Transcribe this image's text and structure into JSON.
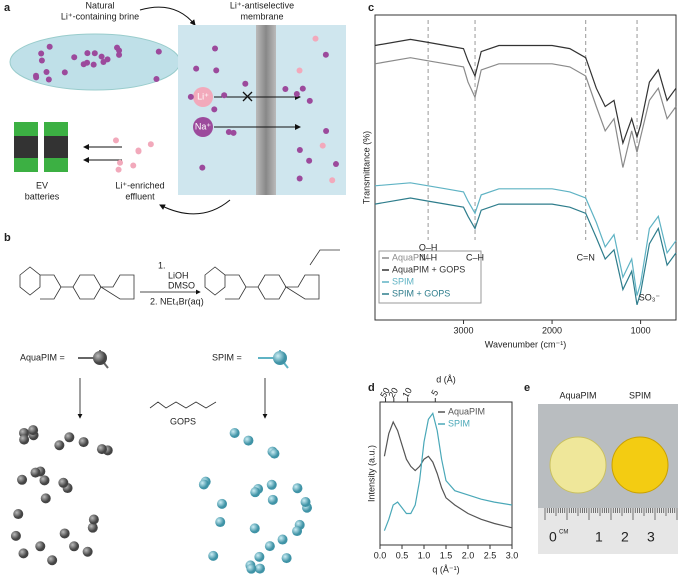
{
  "panel_labels": [
    "a",
    "b",
    "c",
    "d",
    "e"
  ],
  "panel_a": {
    "brine_label": [
      "Natural",
      "Li⁺-containing brine"
    ],
    "membrane_label": [
      "Li⁺-antiselective",
      "membrane"
    ],
    "ion_li": "Li⁺",
    "ion_na": "Na⁺",
    "batteries": [
      "EV",
      "batteries"
    ],
    "effluent": [
      "Li⁺-enriched",
      "effluent"
    ]
  },
  "panel_b": {
    "reagents": [
      "1.",
      "LiOH",
      "DMSO",
      "2. NEt₄Br(aq)"
    ],
    "aquapim": "AquaPIM =",
    "spim": "SPIM =",
    "gops": "GOPS"
  },
  "chart_data": [
    {
      "type": "line",
      "xlabel": "Wavenumber (cm⁻¹)",
      "ylabel": "Transmittance (%)",
      "xlim": [
        4000,
        600
      ],
      "xticks": [
        3000,
        2000,
        1000
      ],
      "ylim": [
        0,
        100
      ],
      "dashed_lines": [
        3400,
        2870,
        1620,
        1040
      ],
      "annotations": [
        "O–H",
        "N–H",
        "C–H",
        "C=N",
        "SO₃⁻"
      ],
      "x": [
        4000,
        3600,
        3400,
        3200,
        3000,
        2950,
        2870,
        2800,
        2600,
        2200,
        2000,
        1800,
        1620,
        1500,
        1400,
        1300,
        1200,
        1100,
        1040,
        1000,
        900,
        800,
        700,
        600
      ],
      "series": [
        {
          "name": "AquaPIM",
          "color": "#8a8a8a",
          "values": [
            84,
            86,
            85,
            84,
            83,
            78,
            73,
            82,
            84,
            84,
            84,
            83,
            80,
            70,
            62,
            66,
            50,
            62,
            55,
            60,
            72,
            76,
            66,
            70
          ]
        },
        {
          "name": "AquaPIM + GOPS",
          "color": "#333333",
          "values": [
            90,
            92,
            91,
            90,
            89,
            85,
            80,
            88,
            90,
            90,
            90,
            89,
            86,
            76,
            70,
            72,
            58,
            66,
            60,
            64,
            78,
            82,
            72,
            76
          ]
        },
        {
          "name": "SPIM",
          "color": "#5fb3c4",
          "values": [
            44,
            45,
            44,
            43,
            42,
            39,
            35,
            41,
            43,
            43,
            43,
            42,
            40,
            32,
            24,
            28,
            14,
            20,
            8,
            12,
            30,
            34,
            22,
            26
          ]
        },
        {
          "name": "SPIM + GOPS",
          "color": "#2e7d8c",
          "values": [
            38,
            40,
            39,
            38,
            37,
            34,
            30,
            36,
            38,
            38,
            38,
            37,
            35,
            27,
            20,
            23,
            10,
            16,
            5,
            9,
            25,
            30,
            18,
            22
          ]
        }
      ]
    },
    {
      "type": "line",
      "xlabel": "q (Å⁻¹)",
      "ylabel": "Intensity (a.u.)",
      "x2label": "d (Å)",
      "xlim": [
        0,
        3
      ],
      "ylim": [
        0,
        100
      ],
      "xticks": [
        {
          "value": 0,
          "label": "0.0"
        },
        0.5,
        {
          "value": 1,
          "label": "1.0"
        },
        1.5,
        {
          "value": 2,
          "label": "2.0"
        },
        2.5,
        {
          "value": 3,
          "label": "3.0"
        }
      ],
      "x2ticks": [
        50,
        20,
        10,
        5
      ],
      "x": [
        0.1,
        0.2,
        0.3,
        0.4,
        0.5,
        0.6,
        0.7,
        0.8,
        0.9,
        1.0,
        1.1,
        1.2,
        1.3,
        1.4,
        1.5,
        1.7,
        2.0,
        2.3,
        2.6,
        3.0
      ],
      "series": [
        {
          "name": "AquaPIM",
          "color": "#555555",
          "values": [
            62,
            78,
            86,
            80,
            70,
            60,
            55,
            52,
            55,
            60,
            62,
            58,
            50,
            40,
            33,
            28,
            22,
            18,
            15,
            12
          ]
        },
        {
          "name": "SPIM",
          "color": "#4aa8b8",
          "values": [
            10,
            18,
            28,
            30,
            26,
            22,
            22,
            28,
            45,
            72,
            88,
            92,
            80,
            60,
            45,
            38,
            35,
            32,
            30,
            28
          ]
        }
      ]
    }
  ],
  "panel_e": {
    "labels": [
      "AquaPIM",
      "SPIM"
    ],
    "ruler": [
      "0",
      "CM",
      "1",
      "2",
      "3"
    ]
  }
}
